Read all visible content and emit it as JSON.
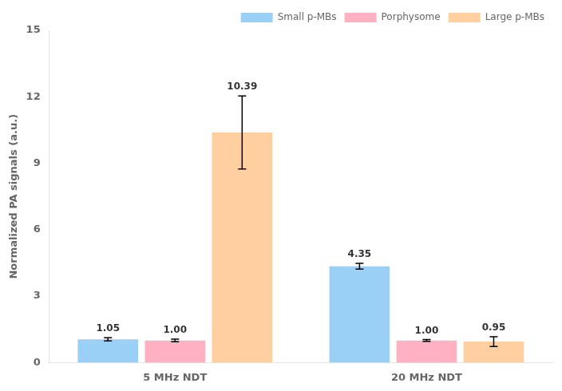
{
  "chart_data": {
    "type": "bar",
    "categories": [
      "5 MHz NDT",
      "20 MHz NDT"
    ],
    "series": [
      {
        "name": "Small p-MBs",
        "values": [
          1.05,
          4.35
        ],
        "errors": [
          0.07,
          0.13
        ],
        "value_labels": [
          "1.05",
          "4.35"
        ]
      },
      {
        "name": "Porphysome",
        "values": [
          1.0,
          1.0
        ],
        "errors": [
          0.06,
          0.04
        ],
        "value_labels": [
          "1.00",
          "1.00"
        ]
      },
      {
        "name": "Large p-MBs",
        "values": [
          10.39,
          0.95
        ],
        "errors": [
          1.65,
          0.22
        ],
        "value_labels": [
          "10.39",
          "0.95"
        ]
      }
    ],
    "ylabel": "Normalized PA signals (a.u.)",
    "ylim": [
      0,
      15
    ],
    "yticks": [
      0,
      3,
      6,
      9,
      12,
      15
    ],
    "grid": false,
    "legend": "upper right",
    "data_labels": true
  }
}
